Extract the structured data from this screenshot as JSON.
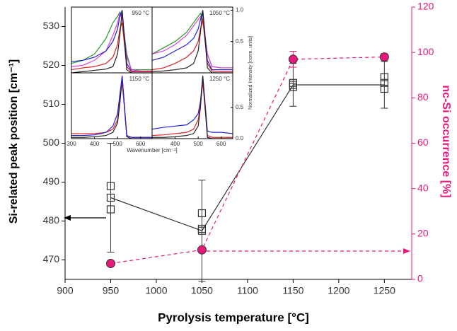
{
  "chart_data": [
    {
      "type": "line",
      "xlabel": "Pyrolysis temperature [°C]",
      "ylabel": "Si-related peak position [cm⁻¹]",
      "y2label": "nc-Si occurrence [%]",
      "x": [
        950,
        1050,
        1150,
        1250
      ],
      "xlim": [
        900,
        1280
      ],
      "xticks": [
        900,
        950,
        1000,
        1050,
        1100,
        1150,
        1200,
        1250
      ],
      "ylim": [
        465,
        535
      ],
      "yticks": [
        470,
        480,
        490,
        500,
        510,
        520,
        530
      ],
      "y2lim": [
        0,
        120
      ],
      "y2ticks": [
        0,
        20,
        40,
        60,
        80,
        100,
        120
      ],
      "series": [
        {
          "color": "#333333",
          "marker": "square",
          "values": [
            486,
            477.5,
            515,
            515
          ],
          "errors": [
            14,
            13,
            5.5,
            6
          ],
          "replicates": [
            [
              489,
              486,
              483
            ],
            [
              482,
              478,
              477.5
            ],
            [
              515.5,
              515,
              514.5
            ],
            [
              517,
              515.5,
              514
            ]
          ]
        },
        {
          "axis": "y2",
          "color": "#e6197a",
          "marker": "circle",
          "dashed": true,
          "values": [
            7,
            13,
            97,
            98
          ],
          "errors": [
            null,
            null,
            3.5,
            1.5
          ]
        }
      ]
    },
    {
      "type": "line",
      "xlabel": "Wavenumber [cm⁻¹]",
      "ylabel": "Normalized Intensity [norm. units]",
      "x": [
        300,
        350,
        400,
        450,
        480,
        500,
        510,
        520,
        540,
        560,
        600,
        650
      ],
      "xlim": [
        300,
        650
      ],
      "ylim": [
        0,
        1.05
      ],
      "panels": [
        {
          "title": "950 °C",
          "xticks": [],
          "yticks": [],
          "series": [
            {
              "color": "#2a9a2a",
              "values": [
                0.15,
                0.2,
                0.3,
                0.55,
                0.8,
                0.9,
                0.97,
                0.9,
                0.3,
                0.05,
                0.05,
                0.05
              ]
            },
            {
              "color": "#e040e0",
              "values": [
                0.1,
                0.12,
                0.2,
                0.35,
                0.6,
                0.8,
                0.95,
                0.85,
                0.25,
                0.05,
                0.03,
                0.03
              ]
            },
            {
              "color": "#2020e0",
              "values": [
                0.18,
                0.2,
                0.25,
                0.35,
                0.5,
                0.7,
                0.9,
                1.0,
                0.15,
                0.03,
                0.02,
                0.02
              ]
            },
            {
              "color": "#e02020",
              "values": [
                0.05,
                0.08,
                0.1,
                0.15,
                0.25,
                0.45,
                0.7,
                0.8,
                0.1,
                0.02,
                0.02,
                0.02
              ]
            },
            {
              "color": "#222222",
              "values": [
                0.0,
                0.02,
                0.04,
                0.06,
                0.1,
                0.3,
                0.6,
                1.0,
                0.05,
                0.0,
                0.0,
                0.0
              ]
            }
          ]
        },
        {
          "title": "1050 °C",
          "xticks": [],
          "yticks": [
            {
              "value": 0.5,
              "label": "0.5"
            },
            {
              "value": 1,
              "label": "1.0"
            }
          ],
          "series": [
            {
              "color": "#2a9a2a",
              "values": [
                0.3,
                0.4,
                0.5,
                0.65,
                0.8,
                0.9,
                0.95,
                0.85,
                0.3,
                0.1,
                0.08,
                0.08
              ]
            },
            {
              "color": "#e040e0",
              "values": [
                0.3,
                0.35,
                0.45,
                0.6,
                0.75,
                0.85,
                0.9,
                0.8,
                0.3,
                0.1,
                0.08,
                0.08
              ]
            },
            {
              "color": "#2020e0",
              "values": [
                0.2,
                0.25,
                0.35,
                0.45,
                0.55,
                0.7,
                0.85,
                1.0,
                0.2,
                0.05,
                0.05,
                0.05
              ]
            },
            {
              "color": "#e02020",
              "values": [
                0.05,
                0.08,
                0.15,
                0.25,
                0.35,
                0.5,
                0.7,
                0.85,
                0.15,
                0.03,
                0.02,
                0.02
              ]
            },
            {
              "color": "#222222",
              "values": [
                0.02,
                0.03,
                0.05,
                0.08,
                0.15,
                0.35,
                0.65,
                1.0,
                0.08,
                0.0,
                0.0,
                0.0
              ]
            }
          ]
        },
        {
          "title": "1150 °C",
          "xticks": [
            300,
            400,
            500,
            600
          ],
          "yticks": [],
          "series": [
            {
              "color": "#e02020",
              "values": [
                0.08,
                0.08,
                0.08,
                0.1,
                0.15,
                0.3,
                0.6,
                0.9,
                0.05,
                0.02,
                0.02,
                0.02
              ]
            },
            {
              "color": "#222222",
              "values": [
                0.02,
                0.02,
                0.03,
                0.05,
                0.1,
                0.25,
                0.55,
                1.0,
                0.03,
                0.0,
                0.0,
                0.0
              ]
            },
            {
              "color": "#2020e0",
              "values": [
                0.05,
                0.05,
                0.06,
                0.1,
                0.2,
                0.4,
                0.7,
                1.0,
                0.05,
                0.02,
                0.02,
                0.02
              ]
            }
          ]
        },
        {
          "title": "1250 °C",
          "xticks": [
            400,
            500,
            600
          ],
          "yticks": [
            {
              "value": 0,
              "label": "0.0"
            },
            {
              "value": 0.5,
              "label": "0.5"
            }
          ],
          "series": [
            {
              "color": "#2020e0",
              "values": [
                0.15,
                0.18,
                0.2,
                0.22,
                0.3,
                0.4,
                0.6,
                1.0,
                0.12,
                0.1,
                0.1,
                0.08
              ]
            },
            {
              "color": "#e02020",
              "values": [
                0.05,
                0.06,
                0.08,
                0.1,
                0.15,
                0.3,
                0.55,
                0.9,
                0.05,
                0.02,
                0.02,
                0.02
              ]
            },
            {
              "color": "#222222",
              "values": [
                0.02,
                0.02,
                0.03,
                0.05,
                0.08,
                0.2,
                0.5,
                1.0,
                0.02,
                0.0,
                0.0,
                0.0
              ]
            }
          ]
        }
      ]
    }
  ]
}
